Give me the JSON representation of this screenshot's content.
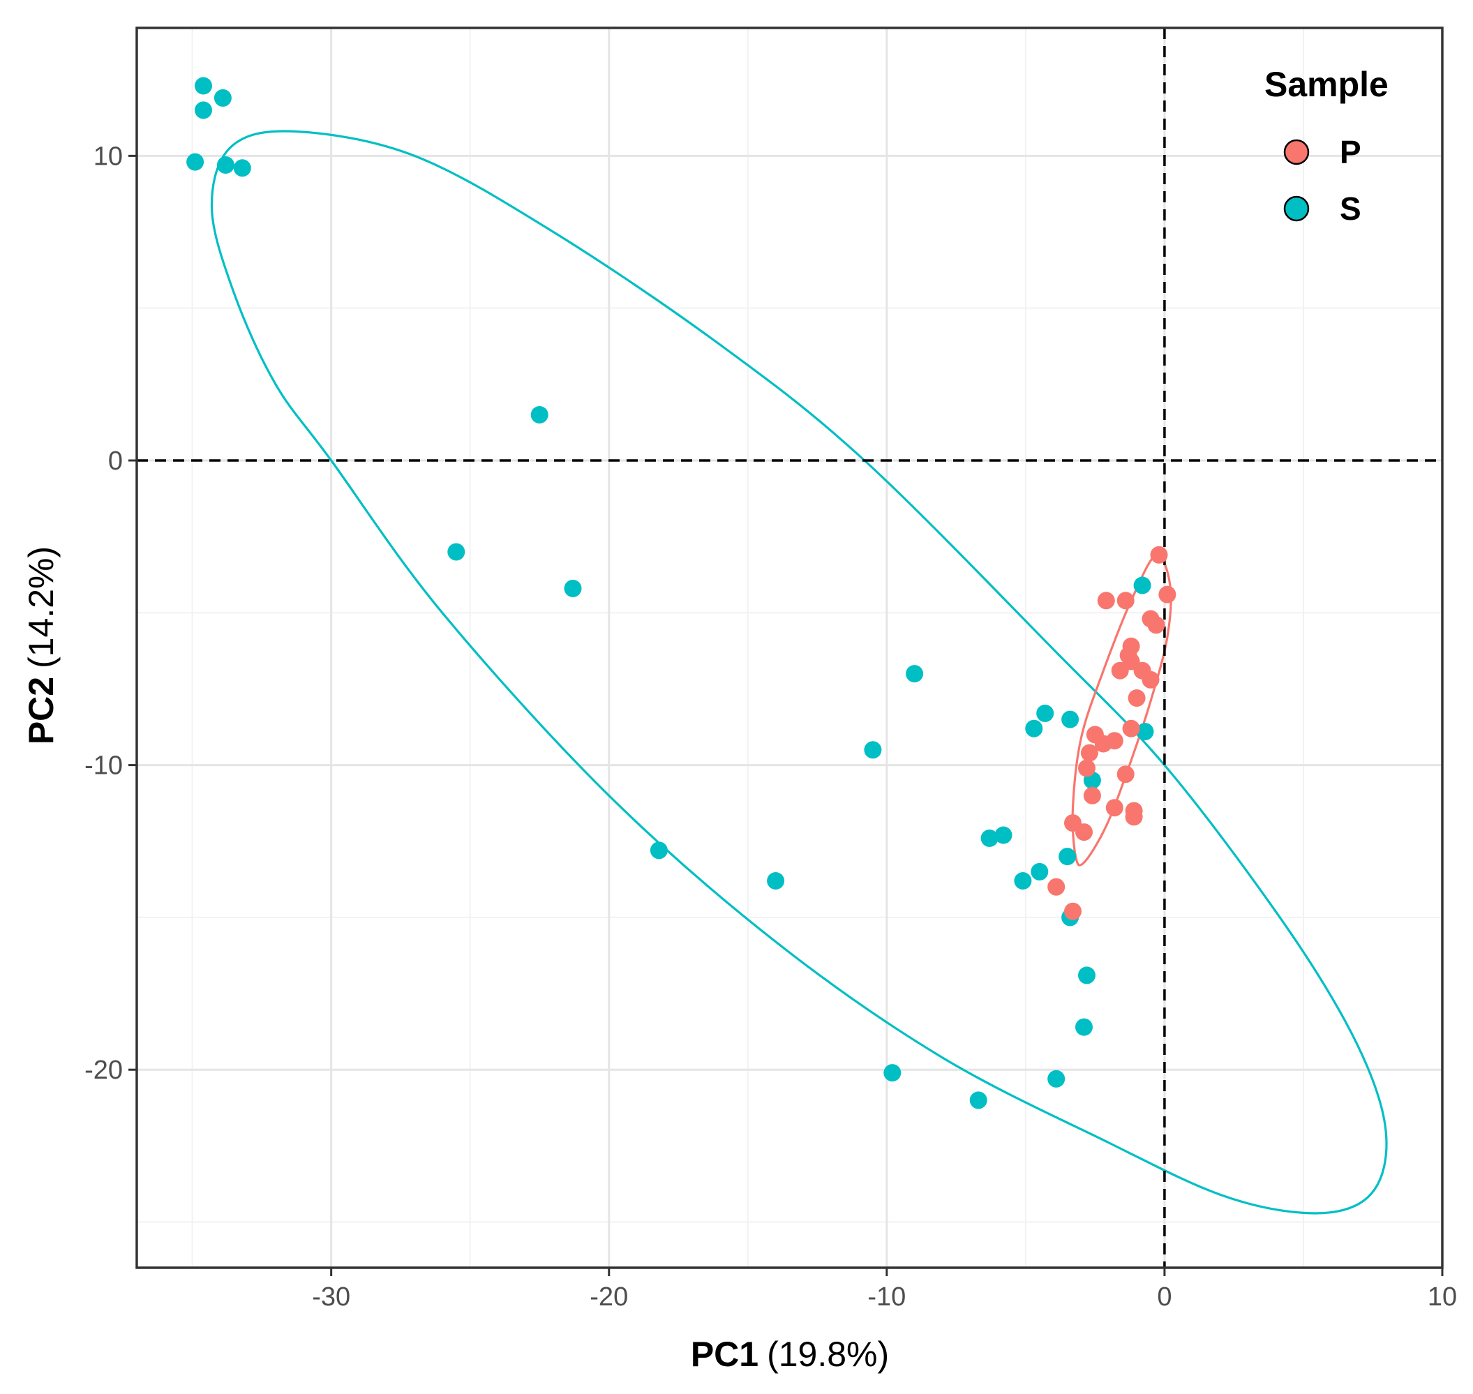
{
  "chart_data": {
    "type": "scatter",
    "xlabel": {
      "main": "PC1",
      "pct": "(19.8%)"
    },
    "ylabel": {
      "main": "PC2",
      "pct": "(14.2%)"
    },
    "xlim": [
      -37,
      10
    ],
    "ylim": [
      -26.5,
      14.2
    ],
    "xticks": [
      -30,
      -20,
      -10,
      0,
      10
    ],
    "yticks": [
      -20,
      -10,
      0,
      10
    ],
    "xminor": [
      -35,
      -25,
      -15,
      -5,
      5
    ],
    "yminor": [
      -25,
      -15,
      -5,
      5
    ],
    "grid": true,
    "reference_lines": {
      "x": 0,
      "y": 0,
      "style": "dashed"
    },
    "legend": {
      "title": "Sample",
      "position": "top-right",
      "entries": [
        {
          "label": "P",
          "color": "#F8766D"
        },
        {
          "label": "S",
          "color": "#00BFC4"
        }
      ]
    },
    "series": [
      {
        "name": "S",
        "color": "#00BFC4",
        "points": [
          [
            -34.6,
            12.3
          ],
          [
            -33.9,
            11.9
          ],
          [
            -34.6,
            11.5
          ],
          [
            -34.9,
            9.8
          ],
          [
            -33.8,
            9.7
          ],
          [
            -33.2,
            9.6
          ],
          [
            -22.5,
            1.5
          ],
          [
            -25.5,
            -3.0
          ],
          [
            -21.3,
            -4.2
          ],
          [
            -9.0,
            -7.0
          ],
          [
            -10.5,
            -9.5
          ],
          [
            -18.2,
            -12.8
          ],
          [
            -14.0,
            -13.8
          ],
          [
            -4.3,
            -8.3
          ],
          [
            -4.7,
            -8.8
          ],
          [
            -3.4,
            -8.5
          ],
          [
            -0.8,
            -4.1
          ],
          [
            -0.7,
            -8.9
          ],
          [
            -2.6,
            -10.5
          ],
          [
            -6.3,
            -12.4
          ],
          [
            -5.8,
            -12.3
          ],
          [
            -3.5,
            -13.0
          ],
          [
            -4.5,
            -13.5
          ],
          [
            -5.1,
            -13.8
          ],
          [
            -3.4,
            -15.0
          ],
          [
            -2.8,
            -16.9
          ],
          [
            -2.9,
            -18.6
          ],
          [
            -9.8,
            -20.1
          ],
          [
            -3.9,
            -20.3
          ],
          [
            -6.7,
            -21.0
          ]
        ]
      },
      {
        "name": "P",
        "color": "#F8766D",
        "points": [
          [
            -0.2,
            -3.1
          ],
          [
            0.1,
            -4.4
          ],
          [
            -2.1,
            -4.6
          ],
          [
            -1.4,
            -4.6
          ],
          [
            -0.5,
            -5.2
          ],
          [
            -0.3,
            -5.4
          ],
          [
            -1.2,
            -6.1
          ],
          [
            -1.3,
            -6.4
          ],
          [
            -1.2,
            -6.6
          ],
          [
            -1.6,
            -6.9
          ],
          [
            -0.8,
            -6.9
          ],
          [
            -0.5,
            -7.2
          ],
          [
            -1.0,
            -7.8
          ],
          [
            -2.5,
            -9.0
          ],
          [
            -2.2,
            -9.3
          ],
          [
            -1.8,
            -9.2
          ],
          [
            -2.7,
            -9.6
          ],
          [
            -1.2,
            -8.8
          ],
          [
            -2.8,
            -10.1
          ],
          [
            -1.4,
            -10.3
          ],
          [
            -2.6,
            -11.0
          ],
          [
            -1.8,
            -11.4
          ],
          [
            -1.1,
            -11.5
          ],
          [
            -1.1,
            -11.7
          ],
          [
            -3.3,
            -11.9
          ],
          [
            -2.9,
            -12.2
          ],
          [
            -3.9,
            -14.0
          ],
          [
            -3.3,
            -14.8
          ]
        ]
      }
    ],
    "ellipses": [
      {
        "group": "S",
        "color": "#00BFC4",
        "path": [
          [
            -31.3,
            10.8
          ],
          [
            -33.6,
            10.3
          ],
          [
            -34.3,
            8.3
          ],
          [
            -33.5,
            5.5
          ],
          [
            -32.0,
            2.5
          ],
          [
            -30.0,
            0.0
          ],
          [
            -26.0,
            -5.0
          ],
          [
            -20.0,
            -11.0
          ],
          [
            -14.0,
            -15.8
          ],
          [
            -8.0,
            -19.6
          ],
          [
            -2.0,
            -22.4
          ],
          [
            2.0,
            -24.1
          ],
          [
            5.0,
            -24.7
          ],
          [
            7.0,
            -24.4
          ],
          [
            7.9,
            -23.2
          ],
          [
            7.8,
            -21.2
          ],
          [
            6.5,
            -18.4
          ],
          [
            4.0,
            -14.8
          ],
          [
            0.0,
            -10.0
          ],
          [
            -4.0,
            -6.2
          ],
          [
            -10.8,
            0.0
          ],
          [
            -16.0,
            3.8
          ],
          [
            -22.0,
            7.5
          ],
          [
            -27.0,
            10.0
          ]
        ]
      },
      {
        "group": "P",
        "color": "#F8766D",
        "path": [
          [
            -0.3,
            -3.1
          ],
          [
            0.2,
            -4.1
          ],
          [
            0.1,
            -5.8
          ],
          [
            -0.5,
            -7.9
          ],
          [
            -1.3,
            -10.1
          ],
          [
            -2.1,
            -12.0
          ],
          [
            -2.9,
            -13.2
          ],
          [
            -3.2,
            -13.0
          ],
          [
            -3.3,
            -11.4
          ],
          [
            -3.0,
            -9.1
          ],
          [
            -2.2,
            -6.9
          ],
          [
            -1.2,
            -4.6
          ]
        ]
      }
    ]
  }
}
